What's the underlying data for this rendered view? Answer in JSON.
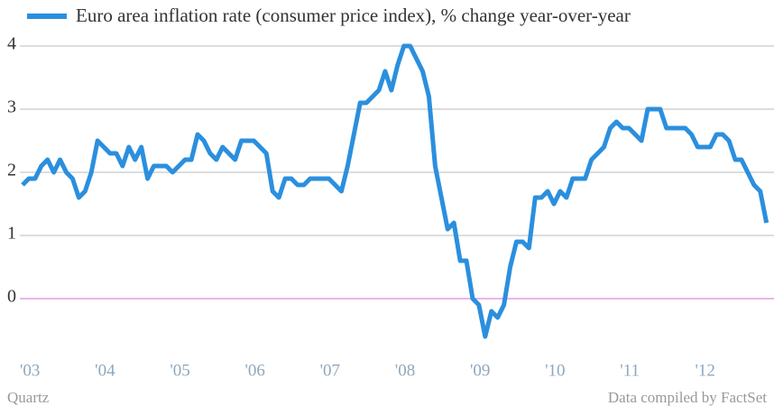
{
  "chart_data": {
    "type": "line",
    "series": [
      {
        "name": "Euro area inflation rate (consumer price index), % change year-over-year",
        "color": "#2b8fde",
        "values": [
          1.8,
          1.9,
          1.9,
          2.1,
          2.2,
          2.0,
          2.2,
          2.0,
          1.9,
          1.6,
          1.7,
          2.0,
          2.5,
          2.4,
          2.3,
          2.3,
          2.1,
          2.4,
          2.2,
          2.4,
          1.9,
          2.1,
          2.1,
          2.1,
          2.0,
          2.1,
          2.2,
          2.2,
          2.6,
          2.5,
          2.3,
          2.2,
          2.4,
          2.3,
          2.2,
          2.5,
          2.5,
          2.5,
          2.4,
          2.3,
          1.7,
          1.6,
          1.9,
          1.9,
          1.8,
          1.8,
          1.9,
          1.9,
          1.9,
          1.9,
          1.8,
          1.7,
          2.1,
          2.6,
          3.1,
          3.1,
          3.2,
          3.3,
          3.6,
          3.3,
          3.7,
          4.0,
          4.0,
          3.8,
          3.6,
          3.2,
          2.1,
          1.6,
          1.1,
          1.2,
          0.6,
          0.6,
          0.0,
          -0.1,
          -0.6,
          -0.2,
          -0.3,
          -0.1,
          0.5,
          0.9,
          0.9,
          0.8,
          1.6,
          1.6,
          1.7,
          1.5,
          1.7,
          1.6,
          1.9,
          1.9,
          1.9,
          2.2,
          2.3,
          2.4,
          2.7,
          2.8,
          2.7,
          2.7,
          2.6,
          2.5,
          3.0,
          3.0,
          3.0,
          2.7,
          2.7,
          2.7,
          2.7,
          2.6,
          2.4,
          2.4,
          2.4,
          2.6,
          2.6,
          2.5,
          2.2,
          2.2,
          2.0,
          1.8,
          1.7,
          1.2
        ]
      }
    ],
    "categories": [
      "'03",
      null,
      null,
      null,
      null,
      null,
      null,
      null,
      null,
      null,
      null,
      null,
      "'04",
      null,
      null,
      null,
      null,
      null,
      null,
      null,
      null,
      null,
      null,
      null,
      "'05",
      null,
      null,
      null,
      null,
      null,
      null,
      null,
      null,
      null,
      null,
      null,
      "'06",
      null,
      null,
      null,
      null,
      null,
      null,
      null,
      null,
      null,
      null,
      null,
      "'07",
      null,
      null,
      null,
      null,
      null,
      null,
      null,
      null,
      null,
      null,
      null,
      "'08",
      null,
      null,
      null,
      null,
      null,
      null,
      null,
      null,
      null,
      null,
      null,
      "'09",
      null,
      null,
      null,
      null,
      null,
      null,
      null,
      null,
      null,
      null,
      null,
      "'10",
      null,
      null,
      null,
      null,
      null,
      null,
      null,
      null,
      null,
      null,
      null,
      "'11",
      null,
      null,
      null,
      null,
      null,
      null,
      null,
      null,
      null,
      null,
      null,
      "'12",
      null,
      null,
      null,
      null,
      null,
      null,
      null,
      null,
      null,
      null,
      null
    ],
    "ylim": [
      -1,
      4.3
    ],
    "yticks": [
      0,
      1,
      2,
      3,
      4
    ],
    "grid": true,
    "source_left": "Quartz",
    "source_right": "Data compiled by FactSet"
  }
}
